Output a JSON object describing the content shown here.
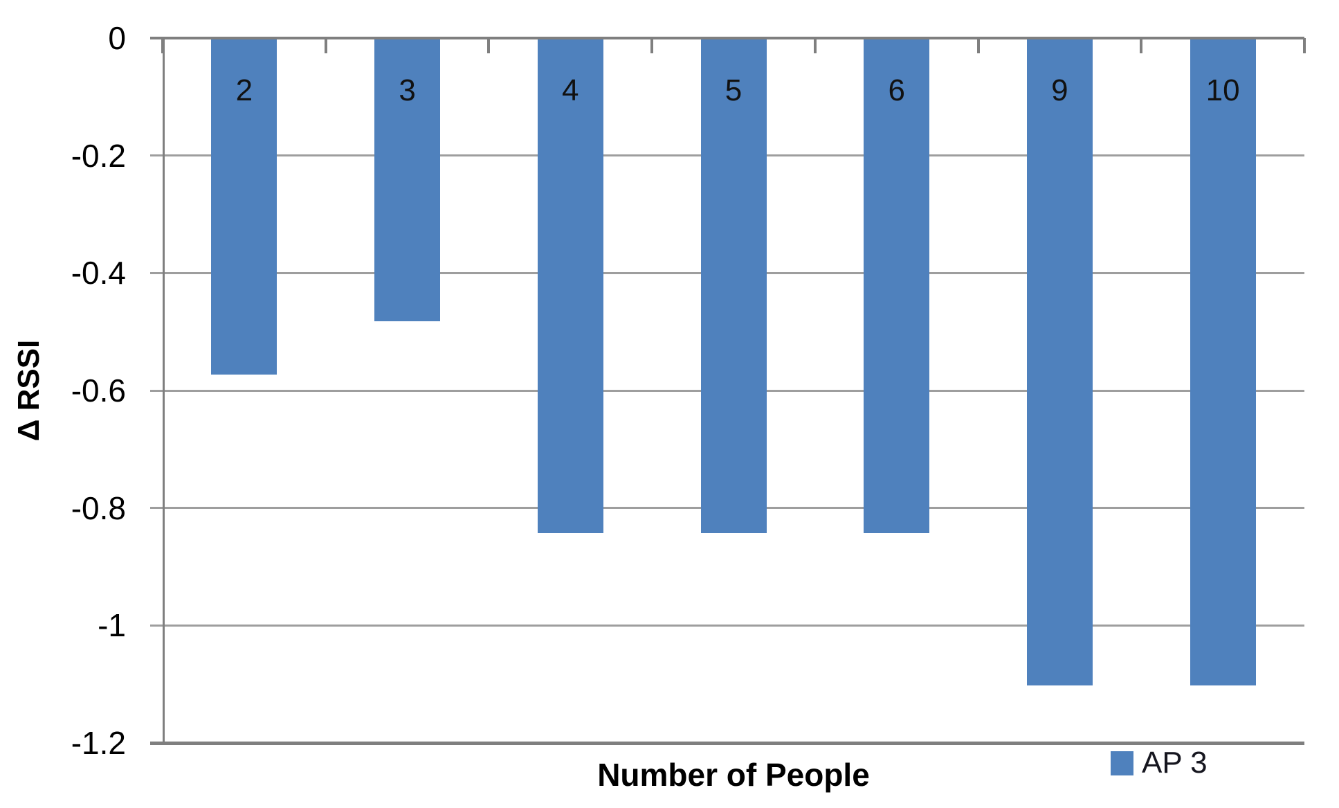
{
  "chart_data": {
    "type": "bar",
    "title": "",
    "xlabel": "Number of People",
    "ylabel": "Δ RSSI",
    "categories": [
      "2",
      "3",
      "4",
      "5",
      "6",
      "9",
      "10"
    ],
    "series": [
      {
        "name": "AP 3",
        "values": [
          -0.57,
          -0.48,
          -0.84,
          -0.84,
          -0.84,
          -1.1,
          -1.1
        ]
      }
    ],
    "ylim": [
      -1.2,
      0
    ],
    "yticks": [
      0,
      -0.2,
      -0.4,
      -0.6,
      -0.8,
      -1,
      -1.2
    ],
    "ytick_labels": [
      "0",
      "-0.2",
      "-0.4",
      "-0.6",
      "-0.8",
      "-1",
      "-1.2"
    ],
    "grid": true,
    "bar_labels_show_category": true,
    "legend_position": "bottom-right",
    "colors": {
      "bar": "#4f81bd",
      "gridline": "#9e9e9e",
      "axis": "#7f7f7f",
      "text": "#000000",
      "legend_text": "#16161f"
    }
  },
  "legend": {
    "label": "AP 3"
  }
}
